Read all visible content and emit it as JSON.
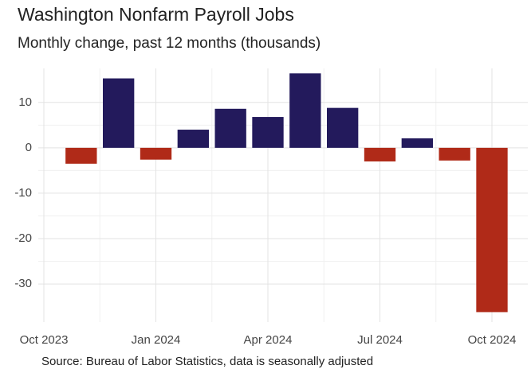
{
  "chart_data": {
    "type": "bar",
    "title": "Washington Nonfarm Payroll Jobs",
    "subtitle": "Monthly change, past 12 months (thousands)",
    "caption": "Source: Bureau of Labor Statistics, data is seasonally adjusted",
    "x": [
      "2023-11",
      "2023-12",
      "2024-01",
      "2024-02",
      "2024-03",
      "2024-04",
      "2024-05",
      "2024-06",
      "2024-07",
      "2024-08",
      "2024-09",
      "2024-10"
    ],
    "values": [
      -3.5,
      15.3,
      -2.6,
      4.0,
      8.6,
      6.8,
      16.4,
      8.8,
      -3.0,
      2.1,
      -2.8,
      -36.2
    ],
    "positive_color": "#231a5c",
    "negative_color": "#b02a18",
    "ylim": [
      -38.4,
      17.5
    ],
    "yticks": [
      -30,
      -20,
      -10,
      0,
      10
    ],
    "xticks": [
      {
        "value": "2023-10",
        "label": "Oct 2023"
      },
      {
        "value": "2024-01",
        "label": "Jan 2024"
      },
      {
        "value": "2024-04",
        "label": "Apr 2024"
      },
      {
        "value": "2024-07",
        "label": "Jul 2024"
      },
      {
        "value": "2024-10",
        "label": "Oct 2024"
      }
    ],
    "grid": true
  }
}
